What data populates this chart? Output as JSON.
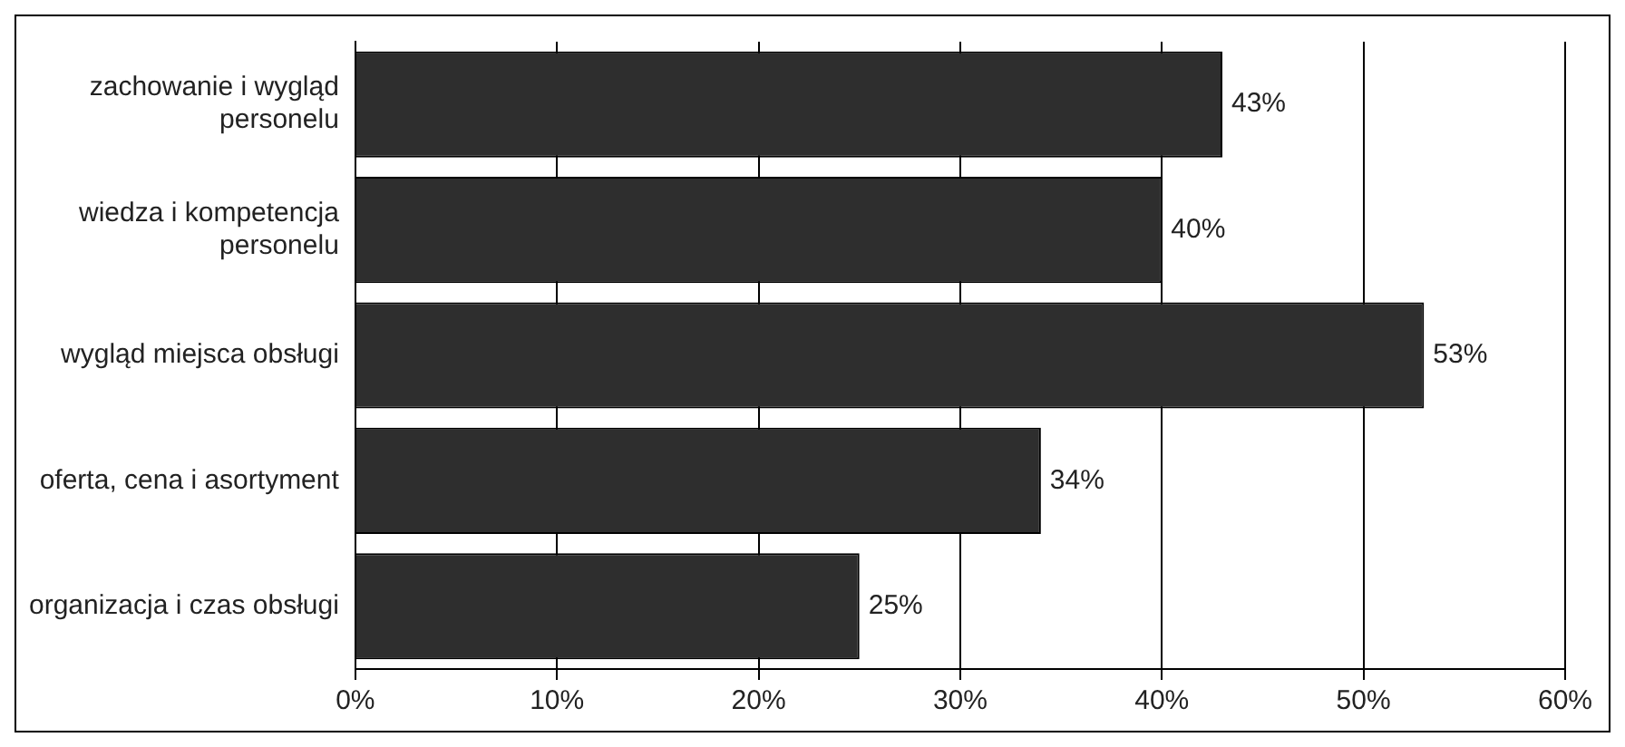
{
  "chart_data": {
    "type": "bar",
    "orientation": "horizontal",
    "categories": [
      "zachowanie i wygląd personelu",
      "wiedza i kompetencja personelu",
      "wygląd miejsca obsługi",
      "oferta, cena i asortyment",
      "organizacja i czas obsługi"
    ],
    "values": [
      43,
      40,
      53,
      34,
      25
    ],
    "value_labels": [
      "43%",
      "40%",
      "53%",
      "34%",
      "25%"
    ],
    "color": "#2e2e2e",
    "xlim": [
      0,
      60
    ],
    "xticks": [
      {
        "value": 0,
        "label": "0%"
      },
      {
        "value": 10,
        "label": "10%"
      },
      {
        "value": 20,
        "label": "20%"
      },
      {
        "value": 30,
        "label": "30%"
      },
      {
        "value": 40,
        "label": "40%"
      },
      {
        "value": 50,
        "label": "50%"
      },
      {
        "value": 60,
        "label": "60%"
      }
    ],
    "grid": "x",
    "legend": false
  }
}
